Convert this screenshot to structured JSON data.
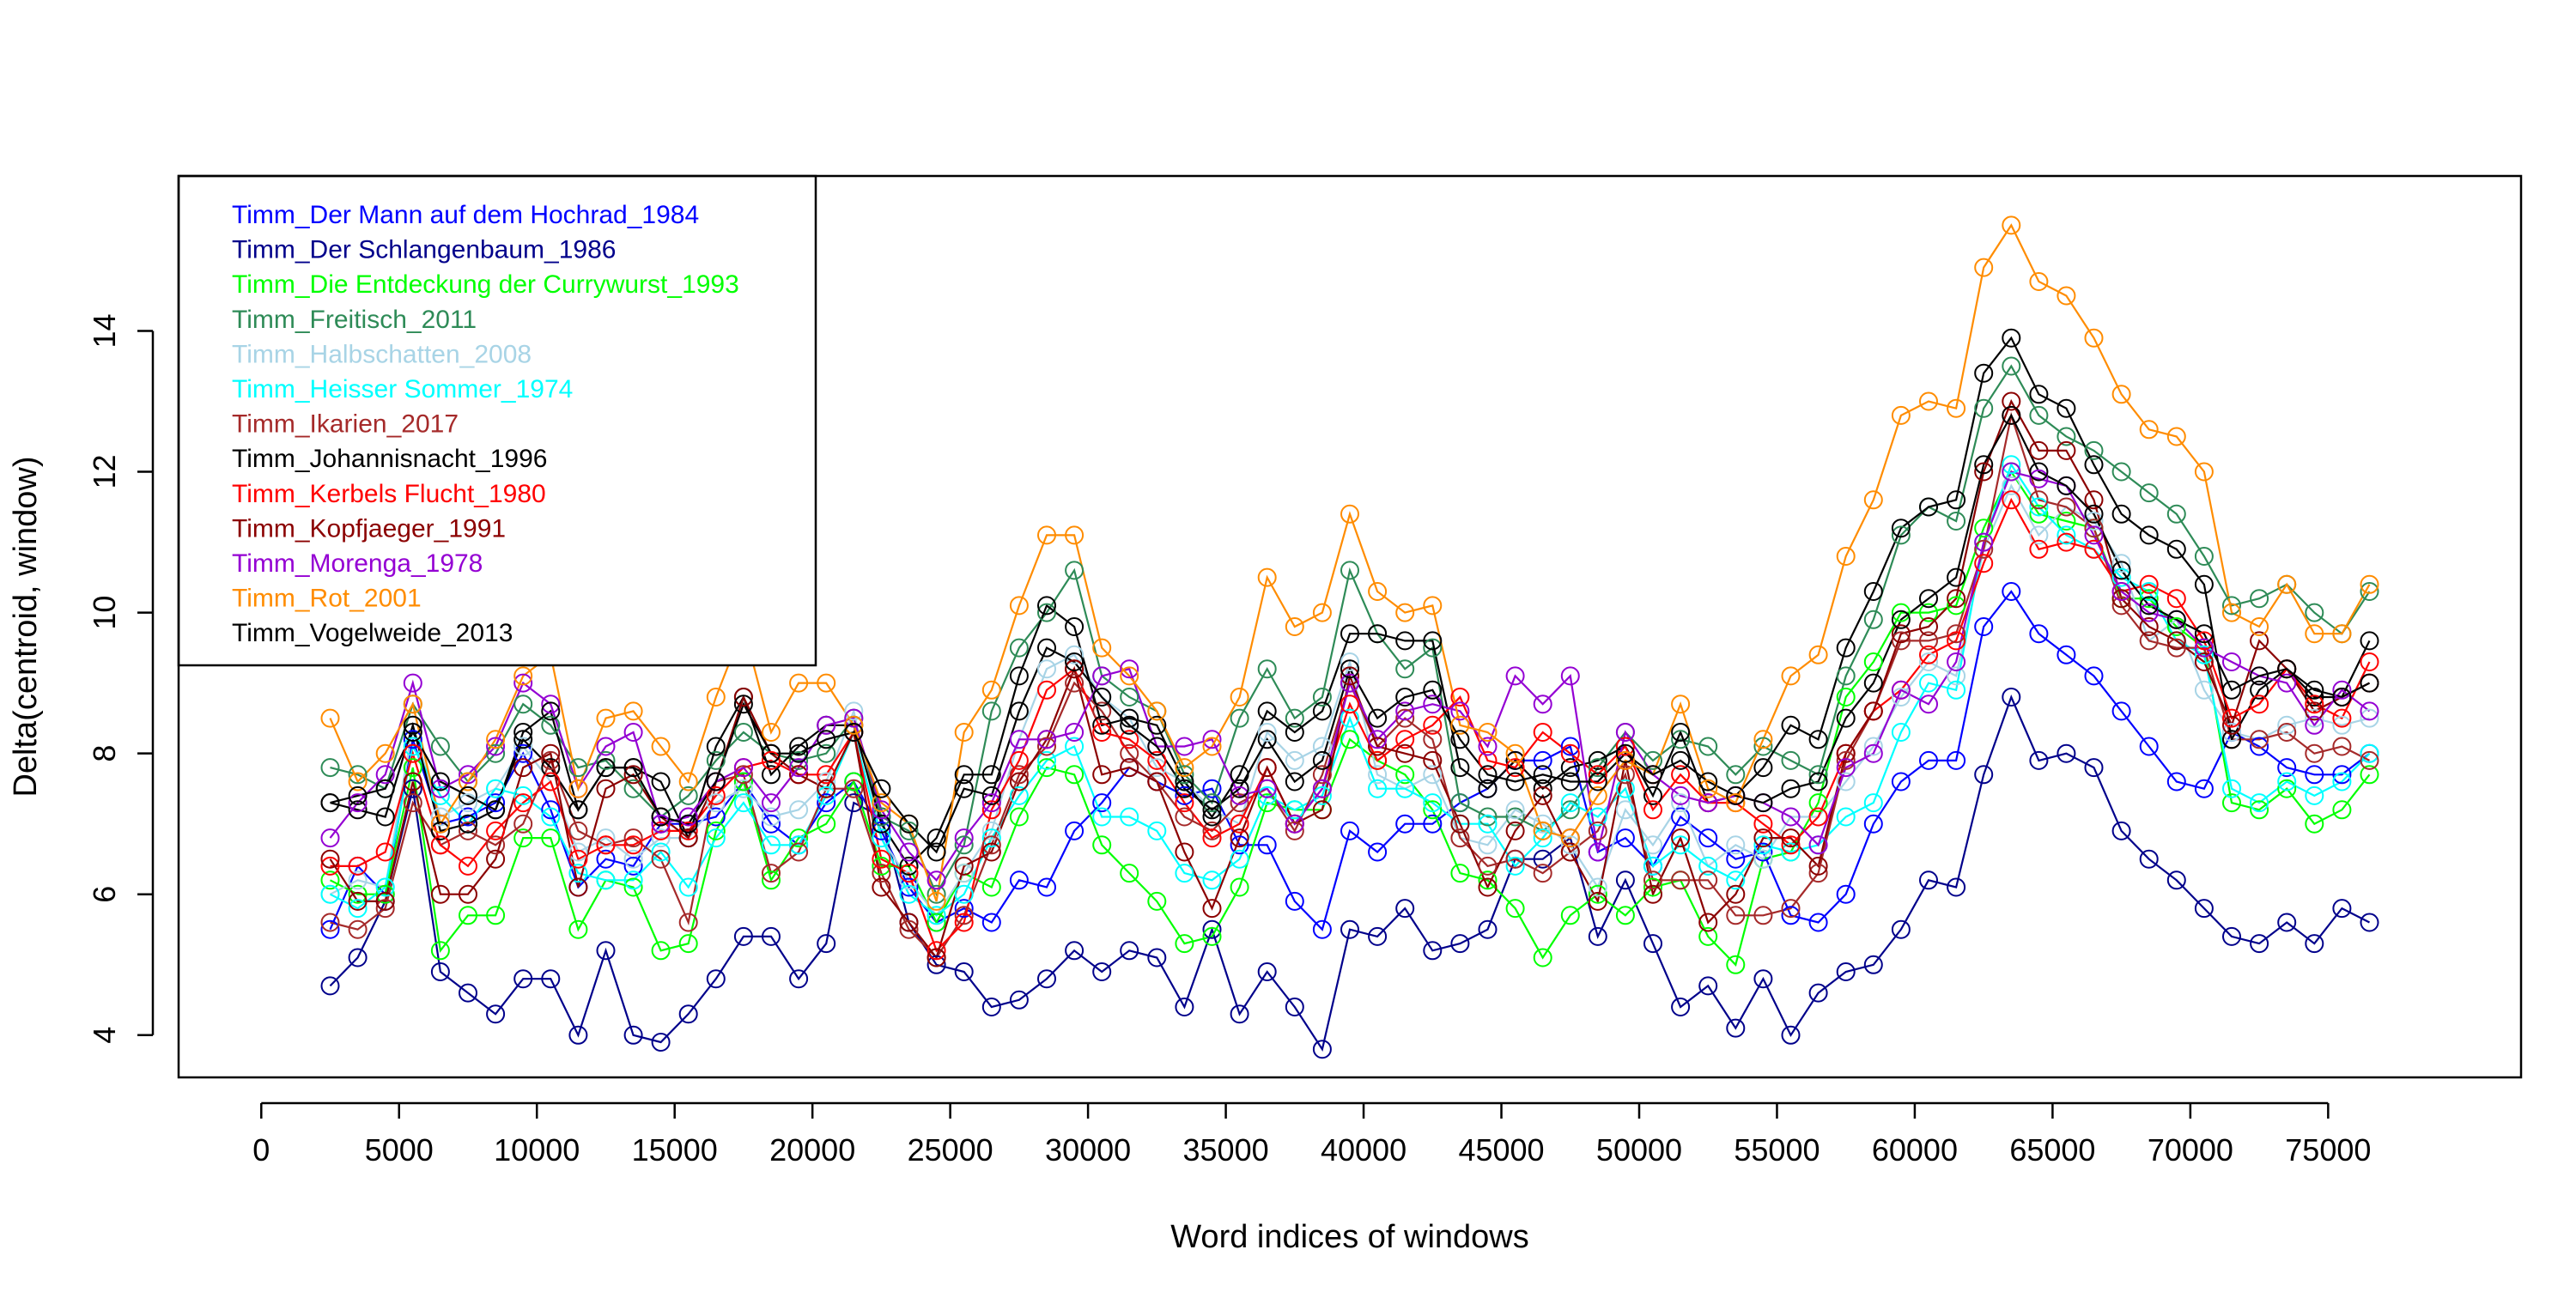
{
  "chart_data": {
    "type": "line",
    "title": "",
    "xlabel": "Word indices of windows",
    "ylabel": "Delta(centroid, window)",
    "xlim": [
      -3000,
      82000
    ],
    "ylim": [
      3.4,
      16.2
    ],
    "xticks": [
      0,
      5000,
      10000,
      15000,
      20000,
      25000,
      30000,
      35000,
      40000,
      45000,
      50000,
      55000,
      60000,
      65000,
      70000,
      75000
    ],
    "xtick_labels": [
      "0",
      "5000",
      "10000",
      "15000",
      "20000",
      "25000",
      "30000",
      "35000",
      "40000",
      "45000",
      "50000",
      "55000",
      "60000",
      "65000",
      "70000",
      "75000"
    ],
    "yticks": [
      4,
      6,
      8,
      10,
      12,
      14
    ],
    "ytick_labels": [
      "4",
      "6",
      "8",
      "10",
      "12",
      "14"
    ],
    "grid": false,
    "legend_position": "top-left",
    "x": [
      2500,
      3500,
      4500,
      5500,
      6500,
      7500,
      8500,
      9500,
      10500,
      11500,
      12500,
      13500,
      14500,
      15500,
      16500,
      17500,
      18500,
      19500,
      20500,
      21500,
      22500,
      23500,
      24500,
      25500,
      26500,
      27500,
      28500,
      29500,
      30500,
      31500,
      32500,
      33500,
      34500,
      35500,
      36500,
      37500,
      38500,
      39500,
      40500,
      41500,
      42500,
      43500,
      44500,
      45500,
      46500,
      47500,
      48500,
      49500,
      50500,
      51500,
      52500,
      53500,
      54500,
      55500,
      56500,
      57500,
      58500,
      59500,
      60500,
      61500,
      62500,
      63500,
      64500,
      65500,
      66500,
      67500,
      68500,
      69500,
      70500,
      71500,
      72500,
      73500,
      74500,
      75500,
      76500
    ],
    "series": [
      {
        "name": "Timm_Der Mann auf dem Hochrad_1984",
        "color": "#0000ff",
        "values": [
          5.5,
          6.4,
          6.0,
          8.2,
          7.0,
          7.1,
          7.3,
          8.0,
          7.2,
          6.1,
          6.5,
          6.4,
          7.0,
          7.0,
          7.1,
          7.6,
          7.0,
          6.7,
          7.3,
          7.6,
          6.9,
          6.1,
          5.6,
          5.8,
          5.6,
          6.2,
          6.1,
          6.9,
          7.3,
          7.8,
          7.6,
          7.4,
          7.5,
          6.7,
          6.7,
          5.9,
          5.5,
          6.9,
          6.6,
          7.0,
          7.0,
          7.3,
          7.5,
          7.9,
          7.9,
          8.1,
          6.6,
          6.8,
          6.4,
          7.1,
          6.8,
          6.5,
          6.6,
          5.7,
          5.6,
          6.0,
          7.0,
          7.6,
          7.9,
          7.9,
          9.8,
          10.3,
          9.7,
          9.4,
          9.1,
          8.6,
          8.1,
          7.6,
          7.5,
          8.3,
          8.1,
          7.8,
          7.7,
          7.7,
          8.0
        ]
      },
      {
        "name": "Timm_Der Schlangenbaum_1986",
        "color": "#00008b",
        "values": [
          4.7,
          5.1,
          5.9,
          7.5,
          4.9,
          4.6,
          4.3,
          4.8,
          4.8,
          4.0,
          5.2,
          4.0,
          3.9,
          4.3,
          4.8,
          5.4,
          5.4,
          4.8,
          5.3,
          7.3,
          7.1,
          5.6,
          5.0,
          4.9,
          4.4,
          4.5,
          4.8,
          5.2,
          4.9,
          5.2,
          5.1,
          4.4,
          5.5,
          4.3,
          4.9,
          4.4,
          3.8,
          5.5,
          5.4,
          5.8,
          5.2,
          5.3,
          5.5,
          6.5,
          6.5,
          6.8,
          5.4,
          6.2,
          5.3,
          4.4,
          4.7,
          4.1,
          4.8,
          4.0,
          4.6,
          4.9,
          5.0,
          5.5,
          6.2,
          6.1,
          7.7,
          8.8,
          7.9,
          8.0,
          7.8,
          6.9,
          6.5,
          6.2,
          5.8,
          5.4,
          5.3,
          5.6,
          5.3,
          5.8,
          5.6
        ]
      },
      {
        "name": "Timm_Die Entdeckung der Currywurst_1993",
        "color": "#00ff00",
        "values": [
          6.2,
          6.0,
          6.0,
          7.8,
          5.2,
          5.7,
          5.7,
          6.8,
          6.8,
          5.5,
          6.2,
          6.1,
          5.2,
          5.3,
          6.9,
          7.6,
          6.2,
          6.8,
          7.0,
          7.6,
          6.4,
          6.4,
          5.6,
          6.3,
          6.1,
          7.1,
          7.8,
          7.7,
          6.7,
          6.3,
          5.9,
          5.3,
          5.4,
          6.1,
          7.3,
          7.2,
          7.2,
          8.2,
          7.9,
          7.7,
          7.2,
          6.3,
          6.2,
          5.8,
          5.1,
          5.7,
          6.0,
          5.7,
          6.1,
          6.2,
          5.4,
          5.0,
          6.5,
          6.6,
          7.3,
          8.8,
          9.3,
          10.0,
          10.0,
          10.1,
          11.2,
          12.0,
          11.4,
          11.3,
          11.2,
          10.2,
          10.2,
          9.8,
          9.5,
          7.3,
          7.2,
          7.5,
          7.0,
          7.2,
          7.7
        ]
      },
      {
        "name": "Timm_Freitisch_2011",
        "color": "#2e8b57",
        "values": [
          7.8,
          7.7,
          7.5,
          8.7,
          8.1,
          7.6,
          8.0,
          8.7,
          8.4,
          7.8,
          7.9,
          7.5,
          7.1,
          7.4,
          7.9,
          8.3,
          8.0,
          7.9,
          8.0,
          8.5,
          7.1,
          6.9,
          6.0,
          6.7,
          8.6,
          9.5,
          10.0,
          10.6,
          9.1,
          8.8,
          8.6,
          7.7,
          7.3,
          8.5,
          9.2,
          8.5,
          8.8,
          10.6,
          9.7,
          9.2,
          9.5,
          7.3,
          7.1,
          7.1,
          6.9,
          7.2,
          7.8,
          8.3,
          7.9,
          8.2,
          8.1,
          7.7,
          8.1,
          7.9,
          7.7,
          9.1,
          9.9,
          11.1,
          11.5,
          11.3,
          12.9,
          13.5,
          12.8,
          12.5,
          12.3,
          12.0,
          11.7,
          11.4,
          10.8,
          10.1,
          10.2,
          10.4,
          10.0,
          9.7,
          10.3
        ]
      },
      {
        "name": "Timm_Halbschatten_2008",
        "color": "#a8d4e6",
        "values": [
          6.0,
          6.2,
          6.1,
          8.4,
          7.1,
          7.3,
          7.5,
          8.1,
          7.6,
          6.6,
          6.8,
          6.5,
          6.8,
          6.8,
          7.3,
          7.5,
          7.1,
          7.2,
          7.6,
          8.6,
          6.8,
          6.2,
          5.7,
          6.3,
          6.9,
          8.2,
          9.2,
          9.4,
          8.8,
          8.5,
          7.8,
          7.6,
          7.2,
          7.0,
          8.3,
          7.9,
          8.1,
          9.3,
          7.7,
          7.5,
          7.7,
          6.8,
          6.7,
          7.2,
          7.0,
          6.7,
          6.1,
          7.2,
          6.7,
          7.3,
          6.4,
          6.7,
          6.5,
          7.1,
          7.1,
          7.6,
          8.1,
          8.8,
          9.3,
          9.1,
          10.9,
          11.8,
          11.1,
          11.5,
          11.3,
          10.7,
          9.6,
          9.9,
          8.9,
          8.3,
          8.2,
          8.4,
          8.5,
          8.4,
          8.5
        ]
      },
      {
        "name": "Timm_Heisser Sommer_1974",
        "color": "#00ffff",
        "values": [
          6.0,
          5.8,
          6.1,
          8.1,
          7.4,
          7.0,
          7.5,
          7.4,
          7.1,
          6.3,
          6.2,
          6.2,
          6.6,
          6.1,
          6.8,
          7.3,
          6.7,
          6.7,
          7.4,
          8.3,
          6.8,
          6.0,
          5.7,
          6.0,
          6.8,
          7.4,
          7.9,
          8.1,
          7.1,
          7.1,
          6.9,
          6.3,
          6.2,
          6.5,
          7.4,
          7.2,
          7.4,
          8.5,
          7.5,
          7.5,
          7.3,
          7.0,
          7.0,
          6.4,
          6.8,
          7.3,
          7.1,
          7.5,
          6.4,
          6.7,
          6.4,
          6.2,
          6.7,
          6.6,
          6.7,
          7.1,
          7.3,
          8.3,
          9.0,
          8.9,
          11.0,
          12.1,
          11.5,
          11.1,
          10.9,
          10.5,
          10.3,
          9.6,
          9.4,
          7.5,
          7.3,
          7.6,
          7.4,
          7.6,
          8.0
        ]
      },
      {
        "name": "Timm_Ikarien_2017",
        "color": "#a52a2a",
        "values": [
          5.6,
          5.5,
          5.8,
          7.3,
          6.7,
          6.9,
          6.7,
          7.0,
          7.9,
          6.9,
          6.7,
          6.8,
          6.5,
          5.6,
          7.6,
          7.7,
          6.3,
          6.6,
          7.5,
          7.5,
          6.3,
          5.5,
          5.1,
          5.7,
          6.7,
          7.7,
          8.1,
          9.0,
          8.6,
          8.0,
          7.6,
          7.1,
          6.9,
          7.3,
          7.5,
          6.9,
          7.7,
          9.0,
          8.1,
          8.5,
          8.2,
          6.8,
          6.4,
          6.5,
          6.3,
          6.6,
          6.9,
          7.7,
          6.2,
          6.2,
          6.2,
          5.7,
          5.7,
          5.8,
          6.3,
          7.9,
          8.6,
          9.6,
          9.6,
          9.7,
          10.9,
          12.8,
          11.6,
          11.5,
          11.2,
          10.1,
          9.6,
          9.5,
          9.5,
          8.2,
          8.2,
          8.3,
          8.0,
          8.1,
          7.9
        ]
      },
      {
        "name": "Timm_Johannisnacht_1996",
        "color": "#000000",
        "values": [
          7.3,
          7.2,
          7.1,
          8.4,
          6.9,
          7.0,
          7.2,
          8.2,
          7.8,
          7.2,
          7.8,
          7.8,
          7.6,
          6.8,
          8.1,
          8.8,
          7.7,
          8.1,
          8.4,
          8.4,
          7.0,
          6.4,
          6.8,
          7.7,
          7.7,
          9.1,
          10.1,
          9.8,
          8.4,
          8.5,
          8.4,
          7.6,
          7.1,
          7.7,
          8.6,
          8.3,
          8.6,
          9.7,
          9.7,
          9.6,
          9.6,
          7.8,
          7.5,
          7.9,
          7.5,
          7.8,
          7.9,
          8.1,
          7.4,
          8.3,
          7.3,
          7.4,
          7.8,
          8.4,
          8.2,
          9.5,
          10.3,
          11.2,
          11.5,
          11.6,
          13.4,
          13.9,
          13.1,
          12.9,
          12.1,
          11.4,
          11.1,
          10.9,
          10.4,
          8.2,
          8.9,
          9.2,
          8.8,
          8.8,
          9.6
        ]
      },
      {
        "name": "Timm_Kerbels Flucht_1980",
        "color": "#ff0000",
        "values": [
          6.4,
          6.4,
          6.6,
          8.0,
          6.7,
          6.4,
          6.9,
          7.3,
          7.6,
          6.5,
          6.7,
          6.7,
          6.9,
          6.9,
          7.4,
          7.8,
          7.9,
          7.7,
          7.7,
          8.3,
          6.5,
          6.3,
          5.2,
          5.6,
          7.2,
          7.9,
          8.9,
          9.2,
          8.3,
          8.2,
          7.9,
          7.3,
          6.8,
          7.0,
          7.8,
          7.0,
          7.5,
          8.7,
          7.9,
          8.2,
          8.4,
          8.8,
          7.9,
          7.8,
          8.3,
          8.0,
          7.7,
          8.1,
          7.2,
          7.7,
          7.3,
          7.3,
          7.0,
          6.7,
          7.1,
          8.0,
          8.6,
          8.9,
          9.4,
          9.6,
          10.7,
          11.6,
          10.9,
          11.0,
          10.9,
          10.3,
          10.4,
          10.2,
          9.6,
          8.5,
          8.7,
          9.2,
          8.7,
          8.5,
          9.3
        ]
      },
      {
        "name": "Timm_Kopfjaeger_1991",
        "color": "#8b0000",
        "values": [
          6.5,
          5.9,
          5.9,
          7.6,
          6.0,
          6.0,
          6.5,
          7.8,
          8.0,
          6.1,
          7.5,
          7.7,
          7.1,
          6.8,
          7.6,
          8.8,
          8.0,
          7.7,
          7.5,
          8.3,
          6.1,
          5.6,
          5.1,
          6.4,
          6.6,
          7.6,
          8.2,
          9.2,
          7.7,
          7.8,
          7.6,
          6.6,
          5.8,
          6.8,
          7.8,
          7.0,
          7.2,
          9.1,
          8.1,
          8.0,
          7.9,
          7.0,
          6.1,
          6.9,
          7.4,
          6.6,
          5.9,
          7.9,
          6.0,
          6.8,
          5.6,
          6.0,
          6.8,
          6.8,
          6.4,
          8.0,
          8.6,
          9.7,
          9.8,
          10.2,
          12.0,
          13.0,
          12.3,
          12.3,
          11.6,
          10.2,
          9.8,
          9.6,
          9.3,
          8.4,
          9.6,
          9.2,
          8.6,
          8.8,
          9.0
        ]
      },
      {
        "name": "Timm_Morenga_1978",
        "color": "#9400d3",
        "values": [
          6.8,
          7.3,
          7.7,
          9.0,
          7.5,
          7.7,
          8.1,
          9.0,
          8.7,
          7.5,
          8.1,
          8.3,
          7.0,
          7.1,
          7.6,
          7.8,
          7.3,
          7.8,
          8.4,
          8.5,
          7.2,
          6.6,
          6.2,
          6.8,
          7.3,
          8.2,
          8.2,
          8.3,
          9.1,
          9.2,
          8.1,
          8.1,
          8.2,
          7.4,
          7.5,
          7.0,
          7.5,
          9.0,
          8.2,
          8.6,
          8.7,
          8.6,
          8.1,
          9.1,
          8.7,
          9.1,
          6.6,
          8.3,
          7.7,
          7.4,
          7.3,
          7.4,
          7.3,
          7.1,
          6.7,
          7.8,
          8.0,
          8.9,
          8.7,
          9.3,
          11.0,
          12.0,
          11.9,
          11.8,
          11.1,
          10.3,
          10.0,
          9.9,
          9.5,
          9.3,
          9.1,
          9.0,
          8.4,
          8.9,
          8.6
        ]
      },
      {
        "name": "Timm_Rot_2001",
        "color": "#ff8c00",
        "values": [
          8.5,
          7.6,
          8.0,
          8.7,
          7.0,
          7.6,
          8.2,
          9.1,
          9.4,
          7.5,
          8.5,
          8.6,
          8.1,
          7.6,
          8.8,
          9.8,
          8.3,
          9.0,
          9.0,
          8.4,
          7.3,
          7.0,
          5.9,
          8.3,
          8.9,
          10.1,
          11.1,
          11.1,
          9.5,
          9.1,
          8.6,
          7.8,
          8.1,
          8.8,
          10.5,
          9.8,
          10.0,
          11.4,
          10.3,
          10.0,
          10.1,
          8.4,
          8.3,
          8.0,
          6.9,
          6.8,
          7.4,
          7.9,
          7.7,
          8.7,
          7.5,
          7.3,
          8.2,
          9.1,
          9.4,
          10.8,
          11.6,
          12.8,
          13.0,
          12.9,
          14.9,
          15.5,
          14.7,
          14.5,
          13.9,
          13.1,
          12.6,
          12.5,
          12.0,
          10.0,
          9.8,
          10.4,
          9.7,
          9.7,
          10.4
        ]
      },
      {
        "name": "Timm_Vogelweide_2013",
        "color": "#000000",
        "values": [
          7.3,
          7.4,
          7.5,
          8.3,
          7.6,
          7.4,
          7.2,
          8.3,
          8.6,
          7.2,
          7.8,
          7.8,
          7.1,
          7.0,
          7.6,
          8.7,
          8.0,
          8.0,
          8.2,
          8.3,
          7.5,
          7.0,
          6.6,
          7.5,
          7.4,
          8.6,
          9.5,
          9.3,
          8.8,
          8.4,
          8.1,
          7.5,
          7.2,
          7.5,
          8.2,
          7.6,
          7.9,
          9.2,
          8.5,
          8.8,
          8.9,
          8.2,
          7.7,
          7.6,
          7.7,
          7.6,
          7.6,
          8.0,
          7.7,
          7.9,
          7.6,
          7.4,
          7.3,
          7.5,
          7.6,
          8.5,
          9.0,
          9.9,
          10.2,
          10.5,
          12.1,
          12.8,
          12.0,
          11.8,
          11.4,
          10.6,
          10.1,
          9.9,
          9.7,
          8.9,
          9.1,
          9.2,
          8.9,
          8.8,
          9.0
        ]
      }
    ]
  }
}
